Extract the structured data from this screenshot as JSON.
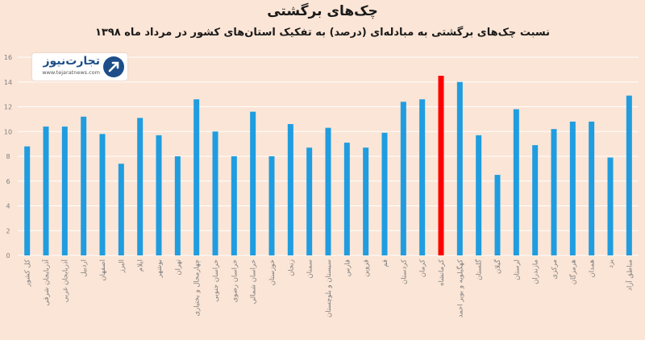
{
  "chart_data": {
    "type": "bar",
    "title": "چک‌های برگشتی",
    "subtitle": "نسبت چک‌های برگشتی به مبادله‌ای (درصد) به تفکیک استان‌های کشور در مرداد ماه ۱۳۹۸",
    "ylim": [
      0,
      16
    ],
    "yticks": [
      "0",
      "2",
      "4",
      "6",
      "8",
      "10",
      "12",
      "14",
      "16"
    ],
    "grid": true,
    "categories": [
      "کل کشور",
      "آذربایجان شرقی",
      "آذربایجان غربی",
      "اردبیل",
      "اصفهان",
      "البرز",
      "ایلام",
      "بوشهر",
      "تهران",
      "چهارمحال و بختیاری",
      "خراسان جنوبی",
      "خراسان رضوی",
      "خراسان شمالی",
      "خوزستان",
      "زنجان",
      "سمنان",
      "سیستان و بلوچستان",
      "فارس",
      "قزوین",
      "قم",
      "کردستان",
      "کرمان",
      "کرمانشاه",
      "کهگیلویه و بویر احمد",
      "گلستان",
      "گیلان",
      "لرستان",
      "مازندران",
      "مرکزی",
      "هرمزگان",
      "همدان",
      "یزد",
      "مناطق آزاد"
    ],
    "values": [
      8.8,
      10.4,
      10.4,
      11.2,
      9.8,
      7.4,
      11.1,
      9.7,
      8.0,
      12.6,
      10.0,
      8.0,
      11.6,
      8.0,
      10.6,
      8.7,
      10.3,
      9.1,
      8.7,
      9.9,
      12.4,
      12.6,
      14.5,
      14.0,
      9.7,
      6.5,
      11.8,
      8.9,
      10.2,
      10.8,
      10.8,
      7.9,
      12.9
    ],
    "highlight_index": 22,
    "colors": {
      "bar": "#1f9de0",
      "highlight": "#ff0000",
      "grid": "#ffffff",
      "tick": "#7f7f7f"
    }
  },
  "logo": {
    "name": "تجارت‌نیوز",
    "url": "www.tejaratnews.com"
  }
}
